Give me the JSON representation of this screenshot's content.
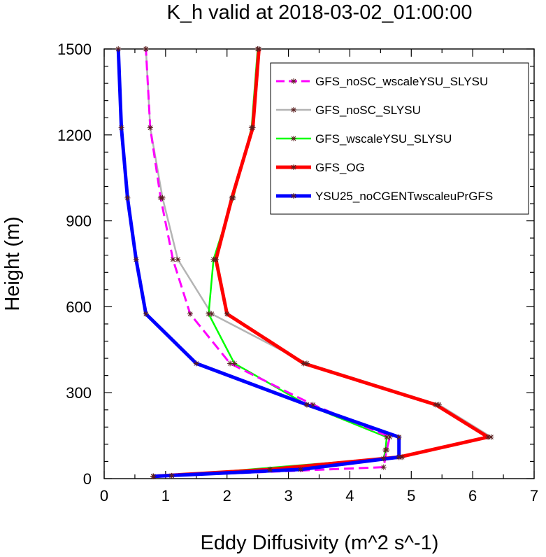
{
  "chart_data": {
    "type": "line",
    "title": "K_h valid at 2018-03-02_01:00:00",
    "xlabel": "Eddy Diffusivity (m^2 s^-1)",
    "ylabel": "Height (m)",
    "xlim": [
      0,
      7
    ],
    "ylim": [
      0,
      1500
    ],
    "xticks": [
      0,
      1,
      2,
      3,
      4,
      5,
      6,
      7
    ],
    "yticks": [
      0,
      300,
      600,
      900,
      1200,
      1500
    ],
    "grid": false,
    "legend_position": "top-right",
    "series": [
      {
        "name": "GFS_noSC_wscaleYSU_SLYSU",
        "color": "#ff00ff",
        "dash": "dashed",
        "points": [
          [
            0.8,
            8
          ],
          [
            1.1,
            10
          ],
          [
            4.55,
            40
          ],
          [
            4.6,
            100
          ],
          [
            4.65,
            145
          ],
          [
            3.4,
            258
          ],
          [
            2.05,
            402
          ],
          [
            1.4,
            575
          ],
          [
            1.12,
            765
          ],
          [
            0.92,
            980
          ],
          [
            0.75,
            1225
          ],
          [
            0.68,
            1500
          ]
        ]
      },
      {
        "name": "GFS_noSC_SLYSU",
        "color": "#b4b4b4",
        "dash": "solid",
        "points": [
          [
            0.8,
            8
          ],
          [
            2.7,
            32
          ],
          [
            4.85,
            75
          ],
          [
            6.3,
            145
          ],
          [
            5.45,
            258
          ],
          [
            3.3,
            402
          ],
          [
            1.75,
            575
          ],
          [
            1.2,
            765
          ],
          [
            0.95,
            980
          ],
          [
            0.75,
            1225
          ],
          [
            0.68,
            1500
          ]
        ]
      },
      {
        "name": "GFS_wscaleYSU_SLYSU",
        "color": "#00ff00",
        "dash": "solid",
        "points": [
          [
            0.8,
            8
          ],
          [
            1.1,
            10
          ],
          [
            4.55,
            70
          ],
          [
            4.58,
            100
          ],
          [
            4.6,
            145
          ],
          [
            3.3,
            258
          ],
          [
            2.12,
            402
          ],
          [
            1.7,
            575
          ],
          [
            1.78,
            765
          ],
          [
            2.1,
            980
          ],
          [
            2.4,
            1225
          ],
          [
            2.5,
            1500
          ]
        ]
      },
      {
        "name": "GFS_OG",
        "color": "#ff0000",
        "dash": "solid",
        "points": [
          [
            0.8,
            8
          ],
          [
            2.7,
            32
          ],
          [
            4.8,
            75
          ],
          [
            6.25,
            145
          ],
          [
            5.4,
            258
          ],
          [
            3.25,
            402
          ],
          [
            2.0,
            575
          ],
          [
            1.82,
            765
          ],
          [
            2.08,
            980
          ],
          [
            2.42,
            1225
          ],
          [
            2.52,
            1500
          ]
        ]
      },
      {
        "name": "YSU25_noCGENTwscaleuPrGFS",
        "color": "#0000ff",
        "dash": "solid",
        "points": [
          [
            0.8,
            8
          ],
          [
            3.2,
            32
          ],
          [
            4.8,
            75
          ],
          [
            4.8,
            145
          ],
          [
            3.3,
            258
          ],
          [
            1.5,
            402
          ],
          [
            0.68,
            575
          ],
          [
            0.52,
            765
          ],
          [
            0.38,
            980
          ],
          [
            0.28,
            1225
          ],
          [
            0.23,
            1500
          ]
        ]
      }
    ]
  }
}
